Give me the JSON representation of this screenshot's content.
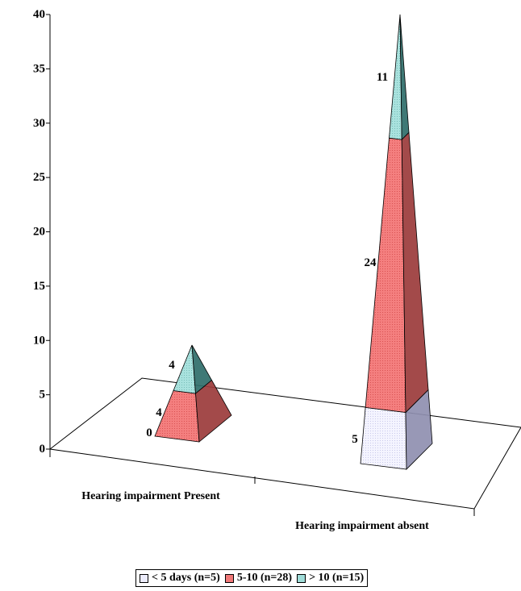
{
  "chart_data": {
    "type": "bar",
    "subtype": "3d-stacked-pyramid",
    "categories": [
      "Hearing impairment Present",
      "Hearing impairment absent"
    ],
    "series": [
      {
        "name": "< 5 days (n=5)",
        "values": [
          0,
          5
        ],
        "color": "#ececfc"
      },
      {
        "name": "5-10 (n=28)",
        "values": [
          4,
          24
        ],
        "color": "#f07878"
      },
      {
        "name": "> 10 (n=15)",
        "values": [
          4,
          11
        ],
        "color": "#9fdcd8"
      }
    ],
    "data_labels": [
      [
        "0",
        "5"
      ],
      [
        "4",
        "24"
      ],
      [
        "4",
        "11"
      ]
    ],
    "ylim": [
      0,
      40
    ],
    "yticks": [
      "0",
      "5",
      "10",
      "15",
      "20",
      "25",
      "30",
      "35",
      "40"
    ],
    "title": "",
    "xlabel": "",
    "ylabel": "",
    "grid": false,
    "legend_position": "bottom"
  }
}
